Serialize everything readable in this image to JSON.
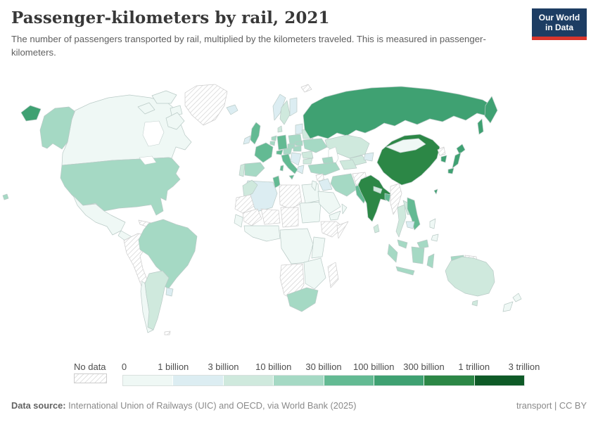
{
  "header": {
    "title": "Passenger-kilometers by rail, 2021",
    "subtitle": "The number of passengers transported by rail, multiplied by the kilometers traveled. This is measured in passenger-kilometers.",
    "logo": {
      "line1": "Our World",
      "line2": "in Data",
      "bg_color": "#1d3d63",
      "accent_color": "#d8352c"
    }
  },
  "chart_data": {
    "type": "choropleth-map",
    "title": "Passenger-kilometers by rail, 2021",
    "unit": "passenger-kilometers",
    "legend": {
      "no_data_label": "No data",
      "no_data_pattern": "diagonal-hatch",
      "tick_labels": [
        "0",
        "1 billion",
        "3 billion",
        "10 billion",
        "30 billion",
        "100 billion",
        "300 billion",
        "1 trillion",
        "3 trillion"
      ],
      "bin_ranges": [
        "0–1 billion",
        "1–3 billion",
        "3–10 billion",
        "10–30 billion",
        "30–100 billion",
        "100–300 billion",
        "300 billion–1 trillion",
        "1–3 trillion"
      ],
      "colors": [
        "#eff8f5",
        "#dcedf2",
        "#cfe9dd",
        "#a5d9c4",
        "#63ba93",
        "#3fa172",
        "#2c8746",
        "#0e5a27"
      ]
    },
    "countries": {
      "Canada": 0,
      "United States": 3,
      "Mexico": 0,
      "Guatemala": 0,
      "Cuba": "no_data",
      "Dominican Republic": 0,
      "Greenland": "no_data",
      "Peru": "no_data",
      "Colombia": "no_data",
      "Venezuela": "no_data",
      "Ecuador": "no_data",
      "Bolivia": "no_data",
      "Paraguay": "no_data",
      "Guyana": "no_data",
      "Brazil": 3,
      "Argentina": 2,
      "Chile": 0,
      "Uruguay": 1,
      "Falkland Islands": "no_data",
      "Iceland": 1,
      "Ireland": 1,
      "United Kingdom": 4,
      "Portugal": 2,
      "Spain": 3,
      "France": 4,
      "Belgium": 3,
      "Netherlands": 3,
      "Germany": 4,
      "Denmark": 2,
      "Norway": 1,
      "Sweden": 2,
      "Finland": 1,
      "Lithuania": 1,
      "Poland": 3,
      "Czechia": 3,
      "Austria": 3,
      "Switzerland": 4,
      "Italy": 4,
      "Slovakia": 3,
      "Hungary": 3,
      "Serbia": 1,
      "Greece": 1,
      "Bulgaria": 2,
      "Romania": 2,
      "Belarus": 2,
      "Ukraine": 3,
      "Svalbard": "no_data",
      "Morocco": 2,
      "Algeria": 1,
      "Tunisia": 4,
      "Libya": "no_data",
      "Egypt": 0,
      "Mauritania": "no_data",
      "Mali": "no_data",
      "Niger": "no_data",
      "Chad": "no_data",
      "Sudan": 0,
      "Senegal": 0,
      "Nigeria": 0,
      "Ethiopia": "no_data",
      "Somalia": "no_data",
      "Democratic Republic of Congo": 0,
      "Kenya": 0,
      "Angola": "no_data",
      "Zambia": 0,
      "Madagascar": "no_data",
      "South Africa": 3,
      "Russia": 5,
      "Kazakhstan": 2,
      "Uzbekistan": 2,
      "Turkmenistan": 2,
      "Kyrgyzstan": 1,
      "Georgia": 3,
      "Turkey": 3,
      "Syria": "no_data",
      "Iraq": 1,
      "Iran": 3,
      "Israel": 0,
      "Saudi Arabia": 0,
      "Yemen": 0,
      "Oman": 0,
      "Afghanistan": "no_data",
      "Pakistan": 4,
      "India": 6,
      "Nepal": 2,
      "Bangladesh": 4,
      "Sri Lanka": 2,
      "Myanmar": "no_data",
      "China": 6,
      "Mongolia": 0,
      "North Korea": "no_data",
      "South Korea": 5,
      "Japan": 5,
      "Taiwan": 5,
      "Thailand": 2,
      "Laos": 2,
      "Vietnam": 4,
      "Cambodia": 1,
      "Malaysia": 3,
      "Indonesia": 3,
      "Philippines": 0,
      "Papua New Guinea": "no_data",
      "Australia": 2,
      "New Zealand": 0
    }
  },
  "footer": {
    "datasource_label": "Data source:",
    "datasource": "International Union of Railways (UIC) and OECD, via World Bank (2025)",
    "license": "transport | CC BY"
  }
}
